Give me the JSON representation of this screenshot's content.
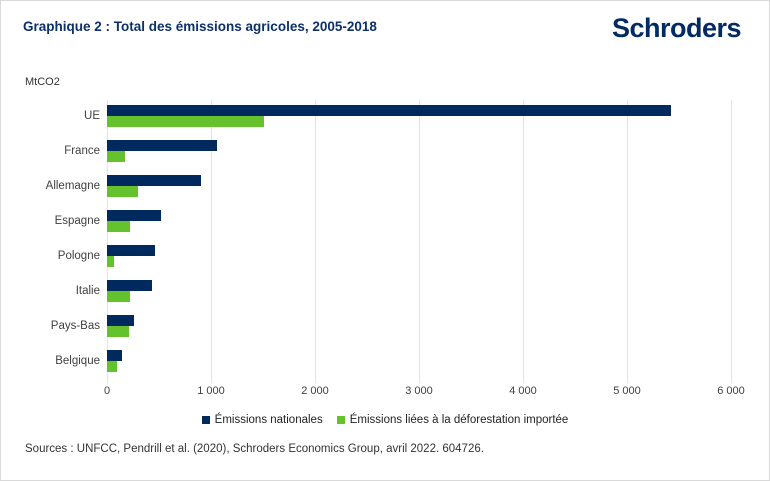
{
  "header": {
    "title": "Graphique 2 : Total des émissions agricoles, 2005-2018",
    "logo_text": "Schroders"
  },
  "unit_label": "MtCO2",
  "chart_data": {
    "type": "bar",
    "orientation": "horizontal",
    "title": "Graphique 2 : Total des émissions agricoles, 2005-2018",
    "ylabel": "MtCO2",
    "categories": [
      "UE",
      "France",
      "Allemagne",
      "Espagne",
      "Pologne",
      "Italie",
      "Pays-Bas",
      "Belgique"
    ],
    "series": [
      {
        "name": "Émissions nationales",
        "color": "#002a5e",
        "values": [
          5420,
          1060,
          900,
          520,
          465,
          435,
          255,
          140
        ]
      },
      {
        "name": "Émissions liées à la déforestation importée",
        "color": "#64c32d",
        "values": [
          1510,
          170,
          300,
          220,
          70,
          220,
          210,
          100
        ]
      }
    ],
    "xlim": [
      0,
      6000
    ],
    "x_ticks": [
      0,
      1000,
      2000,
      3000,
      4000,
      5000,
      6000
    ],
    "x_tick_labels": [
      "0",
      "1 000",
      "2 000",
      "3 000",
      "4 000",
      "5 000",
      "6 000"
    ],
    "grid": "vertical",
    "legend_position": "bottom"
  },
  "footer": {
    "sources": "Sources : UNFCC, Pendrill et al. (2020), Schroders Economics Group, avril 2022. 604726."
  },
  "colors": {
    "navy": "#002a5e",
    "green": "#64c32d",
    "title_navy": "#0d2f6c",
    "gridline": "#e3e3e3",
    "axis_text": "#404040"
  }
}
